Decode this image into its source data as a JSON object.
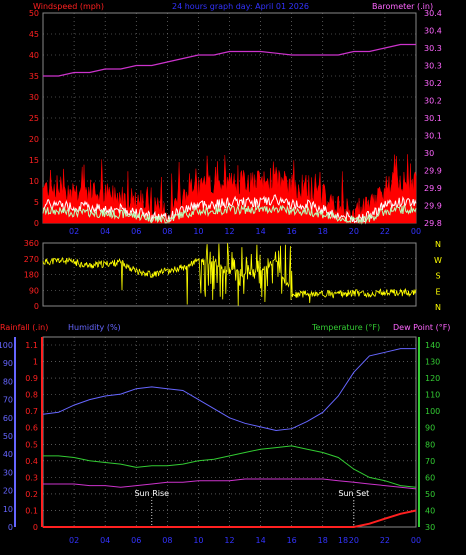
{
  "colors": {
    "wind": "#ff2020",
    "gust": "#ff0000",
    "avg": "#ffffff",
    "avg2": "#b8ffb8",
    "barometer": "#cc33cc",
    "baro_text": "#ff66ff",
    "title": "#3333ff",
    "direction": "#ffff00",
    "rain": "#ff2020",
    "humidity": "#6666ff",
    "temperature": "#33cc33",
    "dew": "#cc33cc",
    "axis_left": "#ff2020",
    "axis_right": "#cc33cc",
    "grid": "#888888",
    "label": "#ffffff"
  },
  "chart_data": [
    {
      "id": "wind-barometer",
      "type": "line",
      "title": "24 hours graph day: April 01 2026",
      "ylabel": "Windspeed (mph)",
      "y2label": "Barometer (.in)",
      "x_ticks": [
        "02",
        "04",
        "06",
        "08",
        "10",
        "12",
        "14",
        "16",
        "18",
        "20",
        "22",
        "00"
      ],
      "ylim": [
        0,
        50
      ],
      "yticks": [
        "0",
        "5",
        "10",
        "15",
        "20",
        "25",
        "30",
        "35",
        "40",
        "45",
        "50"
      ],
      "y2lim": [
        29.8,
        30.4
      ],
      "y2ticks": [
        "29.8",
        "29.9",
        "30",
        "30.1",
        "30.2",
        "30.3",
        "30.4"
      ],
      "series": [
        {
          "name": "Windspeed (mph)",
          "x": [
            0,
            1,
            2,
            3,
            4,
            5,
            6,
            7,
            8,
            9,
            10,
            11,
            12,
            13,
            14,
            15,
            16,
            17,
            18,
            19,
            20,
            21,
            22,
            23,
            24
          ],
          "values": [
            8,
            8,
            7,
            7,
            6,
            6,
            5,
            3,
            2,
            6,
            8,
            8,
            9,
            9,
            9,
            10,
            8,
            8,
            6,
            3,
            2,
            3,
            8,
            9,
            9
          ]
        },
        {
          "name": "Barometer (.in)",
          "x": [
            0,
            1,
            2,
            3,
            4,
            5,
            6,
            7,
            8,
            9,
            10,
            11,
            12,
            13,
            14,
            15,
            16,
            17,
            18,
            19,
            20,
            21,
            22,
            23,
            24
          ],
          "values": [
            30.22,
            30.22,
            30.23,
            30.23,
            30.24,
            30.24,
            30.25,
            30.25,
            30.26,
            30.27,
            30.28,
            30.28,
            30.29,
            30.29,
            30.29,
            30.285,
            30.28,
            30.28,
            30.28,
            30.28,
            30.29,
            30.29,
            30.3,
            30.31,
            30.31
          ]
        }
      ]
    },
    {
      "id": "wind-direction",
      "type": "scatter",
      "ylim": [
        0,
        360
      ],
      "yticks": [
        "0",
        "90",
        "180",
        "270",
        "360"
      ],
      "y2ticks": [
        "N",
        "W",
        "S",
        "E",
        "N"
      ],
      "series": [
        {
          "name": "Direction",
          "x": [
            0,
            1,
            2,
            3,
            4,
            5,
            6,
            7,
            8,
            9,
            10,
            11,
            12,
            13,
            14,
            15,
            16,
            17,
            18,
            19,
            20,
            21,
            22,
            23,
            24
          ],
          "values": [
            250,
            260,
            250,
            230,
            240,
            250,
            200,
            180,
            200,
            220,
            260,
            240,
            200,
            180,
            220,
            250,
            60,
            70,
            70,
            70,
            75,
            70,
            80,
            75,
            80
          ]
        }
      ]
    },
    {
      "id": "rain-humidity-temp",
      "type": "line",
      "labels": {
        "rainfall": "Rainfall (.in)",
        "humidity": "Humidity (%)",
        "temperature": "Temperature (°F)",
        "dew": "Dew Point (°F)"
      },
      "x_ticks": [
        "02",
        "04",
        "06",
        "08",
        "10",
        "12",
        "14",
        "16",
        "18",
        "20",
        "22",
        "00"
      ],
      "rain_ticks": [
        "0",
        "0.1",
        "0.2",
        "0.3",
        "0.4",
        "0.5",
        "0.6",
        "0.7",
        "0.8",
        "0.9",
        "1",
        "1.1"
      ],
      "hum_ticks": [
        "0",
        "10",
        "20",
        "30",
        "40",
        "50",
        "60",
        "70",
        "80",
        "90",
        "100"
      ],
      "temp_ticks": [
        "30",
        "40",
        "50",
        "60",
        "70",
        "80",
        "90",
        "100",
        "110",
        "120",
        "130",
        "140"
      ],
      "rain_lim": [
        0,
        1.1
      ],
      "hum_lim": [
        0,
        100
      ],
      "temp_lim": [
        30,
        140
      ],
      "annotations": [
        {
          "label": "Sun Rise",
          "x": 7
        },
        {
          "label": "Sun Set",
          "x": 20
        },
        {
          "label": "18",
          "x": 19.3
        }
      ],
      "series": [
        {
          "name": "Humidity (%)",
          "x": [
            0,
            1,
            2,
            3,
            4,
            5,
            6,
            7,
            8,
            9,
            10,
            11,
            12,
            13,
            14,
            15,
            16,
            17,
            18,
            19,
            20,
            21,
            22,
            23,
            24
          ],
          "values": [
            62,
            63,
            67,
            70,
            72,
            73,
            76,
            77,
            76,
            75,
            70,
            65,
            60,
            57,
            55,
            53,
            54,
            58,
            63,
            72,
            85,
            94,
            96,
            98,
            98
          ]
        },
        {
          "name": "Temperature (°F)",
          "x": [
            0,
            1,
            2,
            3,
            4,
            5,
            6,
            7,
            8,
            9,
            10,
            11,
            12,
            13,
            14,
            15,
            16,
            17,
            18,
            19,
            20,
            21,
            22,
            23,
            24
          ],
          "values": [
            73,
            73,
            72,
            70,
            69,
            68,
            66,
            67,
            67,
            68,
            70,
            71,
            73,
            75,
            77,
            78,
            79,
            77,
            75,
            72,
            65,
            60,
            58,
            55,
            54
          ]
        },
        {
          "name": "Dew Point (°F)",
          "x": [
            0,
            1,
            2,
            3,
            4,
            5,
            6,
            7,
            8,
            9,
            10,
            11,
            12,
            13,
            14,
            15,
            16,
            17,
            18,
            19,
            20,
            21,
            22,
            23,
            24
          ],
          "values": [
            56,
            56,
            56,
            55,
            55,
            54,
            55,
            56,
            57,
            57,
            58,
            58,
            58,
            59,
            59,
            59,
            59,
            59,
            59,
            58,
            57,
            56,
            55,
            54,
            53
          ]
        },
        {
          "name": "Rainfall (.in)",
          "x": [
            0,
            1,
            2,
            3,
            4,
            5,
            6,
            7,
            8,
            9,
            10,
            11,
            12,
            13,
            14,
            15,
            16,
            17,
            18,
            19,
            20,
            21,
            22,
            23,
            24
          ],
          "values": [
            0,
            0,
            0,
            0,
            0,
            0,
            0,
            0,
            0,
            0,
            0,
            0,
            0,
            0,
            0,
            0,
            0,
            0,
            0,
            0,
            0,
            0.02,
            0.05,
            0.08,
            0.1
          ]
        }
      ]
    }
  ]
}
